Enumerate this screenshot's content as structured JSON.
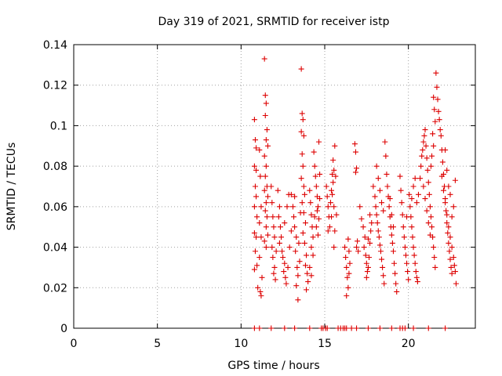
{
  "chart_data": {
    "type": "scatter",
    "title": "Day 319 of 2021, SRMTID for receiver istp",
    "xlabel": "GPS time / hours",
    "ylabel": "SRMTID / TECUs",
    "xlim": [
      0,
      24
    ],
    "ylim": [
      0,
      0.14
    ],
    "xticks": [
      "0",
      "5",
      "10",
      "15",
      "20"
    ],
    "yticks": [
      "0",
      "0.02",
      "0.04",
      "0.06",
      "0.08",
      "0.1",
      "0.12",
      "0.14"
    ],
    "grid": true,
    "marker": "+",
    "color": "#dd0000",
    "points": [
      [
        10.8,
        0.103
      ],
      [
        10.85,
        0.093
      ],
      [
        10.9,
        0.089
      ],
      [
        10.8,
        0.08
      ],
      [
        10.9,
        0.078
      ],
      [
        10.85,
        0.07
      ],
      [
        10.9,
        0.065
      ],
      [
        10.8,
        0.06
      ],
      [
        10.95,
        0.055
      ],
      [
        10.8,
        0.047
      ],
      [
        10.9,
        0.045
      ],
      [
        10.85,
        0.038
      ],
      [
        10.95,
        0.031
      ],
      [
        10.8,
        0.029
      ],
      [
        11.0,
        0.02
      ],
      [
        11.1,
        0.088
      ],
      [
        11.15,
        0.075
      ],
      [
        11.2,
        0.06
      ],
      [
        11.1,
        0.052
      ],
      [
        11.2,
        0.045
      ],
      [
        11.1,
        0.035
      ],
      [
        11.25,
        0.025
      ],
      [
        11.15,
        0.018
      ],
      [
        11.2,
        0.016
      ],
      [
        11.4,
        0.133
      ],
      [
        11.45,
        0.115
      ],
      [
        11.5,
        0.111
      ],
      [
        11.45,
        0.105
      ],
      [
        11.55,
        0.098
      ],
      [
        11.5,
        0.093
      ],
      [
        11.6,
        0.09
      ],
      [
        11.4,
        0.085
      ],
      [
        11.5,
        0.08
      ],
      [
        11.45,
        0.075
      ],
      [
        11.55,
        0.07
      ],
      [
        11.4,
        0.068
      ],
      [
        11.6,
        0.065
      ],
      [
        11.5,
        0.062
      ],
      [
        11.45,
        0.058
      ],
      [
        11.55,
        0.055
      ],
      [
        11.5,
        0.05
      ],
      [
        11.6,
        0.046
      ],
      [
        11.4,
        0.043
      ],
      [
        11.5,
        0.04
      ],
      [
        11.8,
        0.07
      ],
      [
        11.85,
        0.062
      ],
      [
        11.9,
        0.055
      ],
      [
        11.95,
        0.05
      ],
      [
        12.0,
        0.045
      ],
      [
        11.85,
        0.04
      ],
      [
        12.1,
        0.038
      ],
      [
        11.9,
        0.035
      ],
      [
        12.0,
        0.03
      ],
      [
        11.95,
        0.027
      ],
      [
        12.05,
        0.024
      ],
      [
        12.2,
        0.068
      ],
      [
        12.3,
        0.06
      ],
      [
        12.25,
        0.055
      ],
      [
        12.35,
        0.05
      ],
      [
        12.4,
        0.045
      ],
      [
        12.3,
        0.042
      ],
      [
        12.45,
        0.038
      ],
      [
        12.5,
        0.035
      ],
      [
        12.6,
        0.032
      ],
      [
        12.55,
        0.028
      ],
      [
        12.65,
        0.025
      ],
      [
        12.7,
        0.022
      ],
      [
        12.8,
        0.03
      ],
      [
        12.9,
        0.04
      ],
      [
        13.0,
        0.048
      ],
      [
        12.75,
        0.06
      ],
      [
        12.85,
        0.066
      ],
      [
        12.6,
        0.052
      ],
      [
        13.0,
        0.066
      ],
      [
        13.1,
        0.06
      ],
      [
        13.15,
        0.055
      ],
      [
        13.2,
        0.05
      ],
      [
        13.3,
        0.045
      ],
      [
        13.25,
        0.038
      ],
      [
        13.35,
        0.03
      ],
      [
        13.4,
        0.026
      ],
      [
        13.3,
        0.021
      ],
      [
        13.4,
        0.014
      ],
      [
        13.5,
        0.033
      ],
      [
        13.45,
        0.042
      ],
      [
        13.55,
        0.057
      ],
      [
        13.2,
        0.065
      ],
      [
        13.6,
        0.128
      ],
      [
        13.65,
        0.106
      ],
      [
        13.7,
        0.103
      ],
      [
        13.6,
        0.097
      ],
      [
        13.75,
        0.095
      ],
      [
        13.65,
        0.086
      ],
      [
        13.7,
        0.08
      ],
      [
        13.6,
        0.074
      ],
      [
        13.75,
        0.07
      ],
      [
        13.8,
        0.066
      ],
      [
        13.65,
        0.062
      ],
      [
        13.75,
        0.057
      ],
      [
        13.85,
        0.052
      ],
      [
        13.7,
        0.047
      ],
      [
        13.8,
        0.042
      ],
      [
        13.9,
        0.036
      ],
      [
        13.85,
        0.031
      ],
      [
        13.95,
        0.027
      ],
      [
        14.0,
        0.023
      ],
      [
        13.9,
        0.019
      ],
      [
        14.1,
        0.068
      ],
      [
        14.15,
        0.062
      ],
      [
        14.2,
        0.056
      ],
      [
        14.25,
        0.05
      ],
      [
        14.3,
        0.045
      ],
      [
        14.2,
        0.04
      ],
      [
        14.3,
        0.036
      ],
      [
        14.1,
        0.03
      ],
      [
        14.2,
        0.026
      ],
      [
        14.35,
        0.087
      ],
      [
        14.4,
        0.08
      ],
      [
        14.45,
        0.075
      ],
      [
        14.5,
        0.07
      ],
      [
        14.55,
        0.065
      ],
      [
        14.6,
        0.06
      ],
      [
        14.4,
        0.055
      ],
      [
        14.5,
        0.05
      ],
      [
        14.6,
        0.046
      ],
      [
        14.55,
        0.058
      ],
      [
        14.65,
        0.092
      ],
      [
        14.7,
        0.076
      ],
      [
        14.7,
        0.064
      ],
      [
        14.65,
        0.054
      ],
      [
        15.1,
        0.07
      ],
      [
        15.15,
        0.065
      ],
      [
        15.2,
        0.06
      ],
      [
        15.25,
        0.055
      ],
      [
        15.3,
        0.05
      ],
      [
        15.2,
        0.048
      ],
      [
        15.35,
        0.062
      ],
      [
        15.4,
        0.068
      ],
      [
        15.45,
        0.076
      ],
      [
        15.5,
        0.083
      ],
      [
        15.55,
        0.078
      ],
      [
        15.5,
        0.072
      ],
      [
        15.45,
        0.066
      ],
      [
        15.55,
        0.06
      ],
      [
        15.4,
        0.055
      ],
      [
        15.6,
        0.048
      ],
      [
        15.55,
        0.04
      ],
      [
        15.6,
        0.09
      ],
      [
        15.65,
        0.075
      ],
      [
        15.7,
        0.056
      ],
      [
        16.2,
        0.04
      ],
      [
        16.25,
        0.035
      ],
      [
        16.3,
        0.03
      ],
      [
        16.35,
        0.025
      ],
      [
        16.4,
        0.02
      ],
      [
        16.3,
        0.016
      ],
      [
        16.4,
        0.044
      ],
      [
        16.45,
        0.038
      ],
      [
        16.5,
        0.032
      ],
      [
        16.45,
        0.027
      ],
      [
        16.8,
        0.091
      ],
      [
        16.85,
        0.087
      ],
      [
        16.9,
        0.079
      ],
      [
        16.85,
        0.077
      ],
      [
        16.95,
        0.043
      ],
      [
        16.9,
        0.04
      ],
      [
        17.0,
        0.038
      ],
      [
        17.1,
        0.06
      ],
      [
        17.2,
        0.054
      ],
      [
        17.3,
        0.05
      ],
      [
        17.4,
        0.045
      ],
      [
        17.35,
        0.04
      ],
      [
        17.45,
        0.036
      ],
      [
        17.5,
        0.032
      ],
      [
        17.55,
        0.028
      ],
      [
        17.5,
        0.025
      ],
      [
        17.6,
        0.03
      ],
      [
        17.65,
        0.035
      ],
      [
        17.7,
        0.042
      ],
      [
        17.75,
        0.048
      ],
      [
        17.8,
        0.052
      ],
      [
        17.7,
        0.056
      ],
      [
        17.6,
        0.044
      ],
      [
        17.9,
        0.07
      ],
      [
        18.0,
        0.065
      ],
      [
        18.05,
        0.06
      ],
      [
        18.1,
        0.056
      ],
      [
        18.15,
        0.052
      ],
      [
        18.2,
        0.048
      ],
      [
        18.25,
        0.045
      ],
      [
        18.3,
        0.041
      ],
      [
        18.35,
        0.038
      ],
      [
        18.4,
        0.034
      ],
      [
        18.45,
        0.03
      ],
      [
        18.5,
        0.026
      ],
      [
        18.55,
        0.022
      ],
      [
        18.1,
        0.08
      ],
      [
        18.2,
        0.074
      ],
      [
        18.3,
        0.068
      ],
      [
        18.4,
        0.062
      ],
      [
        18.5,
        0.058
      ],
      [
        18.6,
        0.092
      ],
      [
        18.65,
        0.085
      ],
      [
        18.7,
        0.076
      ],
      [
        18.75,
        0.07
      ],
      [
        18.8,
        0.065
      ],
      [
        18.85,
        0.06
      ],
      [
        18.9,
        0.055
      ],
      [
        18.95,
        0.05
      ],
      [
        19.0,
        0.046
      ],
      [
        19.05,
        0.042
      ],
      [
        19.1,
        0.038
      ],
      [
        19.15,
        0.032
      ],
      [
        19.2,
        0.027
      ],
      [
        19.25,
        0.022
      ],
      [
        19.3,
        0.018
      ],
      [
        18.9,
        0.064
      ],
      [
        19.0,
        0.056
      ],
      [
        19.1,
        0.05
      ],
      [
        19.5,
        0.075
      ],
      [
        19.55,
        0.068
      ],
      [
        19.6,
        0.062
      ],
      [
        19.65,
        0.056
      ],
      [
        19.7,
        0.05
      ],
      [
        19.75,
        0.045
      ],
      [
        19.8,
        0.04
      ],
      [
        19.85,
        0.036
      ],
      [
        19.9,
        0.032
      ],
      [
        19.95,
        0.028
      ],
      [
        20.0,
        0.024
      ],
      [
        19.9,
        0.055
      ],
      [
        20.05,
        0.066
      ],
      [
        20.1,
        0.06
      ],
      [
        20.15,
        0.055
      ],
      [
        20.2,
        0.05
      ],
      [
        20.25,
        0.045
      ],
      [
        20.3,
        0.04
      ],
      [
        20.35,
        0.036
      ],
      [
        20.4,
        0.032
      ],
      [
        20.45,
        0.028
      ],
      [
        20.5,
        0.025
      ],
      [
        20.55,
        0.023
      ],
      [
        20.2,
        0.064
      ],
      [
        20.3,
        0.07
      ],
      [
        20.4,
        0.074
      ],
      [
        20.5,
        0.062
      ],
      [
        20.6,
        0.066
      ],
      [
        20.7,
        0.074
      ],
      [
        20.75,
        0.08
      ],
      [
        20.8,
        0.085
      ],
      [
        20.85,
        0.088
      ],
      [
        20.9,
        0.092
      ],
      [
        20.95,
        0.095
      ],
      [
        21.0,
        0.098
      ],
      [
        21.05,
        0.09
      ],
      [
        21.1,
        0.084
      ],
      [
        21.15,
        0.078
      ],
      [
        21.2,
        0.072
      ],
      [
        21.25,
        0.066
      ],
      [
        21.3,
        0.06
      ],
      [
        21.35,
        0.055
      ],
      [
        21.4,
        0.05
      ],
      [
        21.45,
        0.045
      ],
      [
        21.5,
        0.04
      ],
      [
        21.55,
        0.035
      ],
      [
        21.6,
        0.03
      ],
      [
        20.9,
        0.07
      ],
      [
        21.0,
        0.064
      ],
      [
        21.1,
        0.058
      ],
      [
        21.2,
        0.052
      ],
      [
        21.3,
        0.046
      ],
      [
        21.65,
        0.126
      ],
      [
        21.7,
        0.119
      ],
      [
        21.75,
        0.113
      ],
      [
        21.8,
        0.107
      ],
      [
        21.85,
        0.103
      ],
      [
        21.9,
        0.098
      ],
      [
        21.95,
        0.095
      ],
      [
        22.0,
        0.088
      ],
      [
        22.05,
        0.082
      ],
      [
        22.1,
        0.076
      ],
      [
        22.15,
        0.07
      ],
      [
        22.2,
        0.064
      ],
      [
        22.25,
        0.058
      ],
      [
        22.3,
        0.052
      ],
      [
        22.35,
        0.047
      ],
      [
        22.4,
        0.042
      ],
      [
        22.45,
        0.038
      ],
      [
        22.5,
        0.034
      ],
      [
        22.55,
        0.03
      ],
      [
        22.6,
        0.027
      ],
      [
        21.5,
        0.114
      ],
      [
        21.55,
        0.108
      ],
      [
        21.6,
        0.102
      ],
      [
        21.45,
        0.096
      ],
      [
        21.5,
        0.09
      ],
      [
        21.4,
        0.085
      ],
      [
        21.35,
        0.08
      ],
      [
        22.0,
        0.075
      ],
      [
        22.1,
        0.068
      ],
      [
        22.2,
        0.062
      ],
      [
        22.3,
        0.056
      ],
      [
        22.4,
        0.05
      ],
      [
        22.5,
        0.045
      ],
      [
        22.6,
        0.04
      ],
      [
        22.7,
        0.035
      ],
      [
        22.75,
        0.031
      ],
      [
        22.8,
        0.028
      ],
      [
        22.85,
        0.022
      ],
      [
        22.7,
        0.06
      ],
      [
        22.6,
        0.055
      ],
      [
        22.8,
        0.073
      ],
      [
        22.5,
        0.066
      ],
      [
        22.4,
        0.07
      ],
      [
        22.3,
        0.078
      ],
      [
        22.2,
        0.088
      ]
    ],
    "zero_points_x": [
      10.8,
      11.1,
      11.8,
      12.6,
      13.2,
      14.1,
      14.8,
      14.9,
      15.05,
      15.15,
      15.8,
      15.95,
      16.1,
      16.2,
      16.3,
      16.6,
      16.9,
      17.6,
      18.3,
      19.0,
      19.5,
      19.65,
      19.8,
      20.3,
      21.2,
      22.2
    ]
  }
}
